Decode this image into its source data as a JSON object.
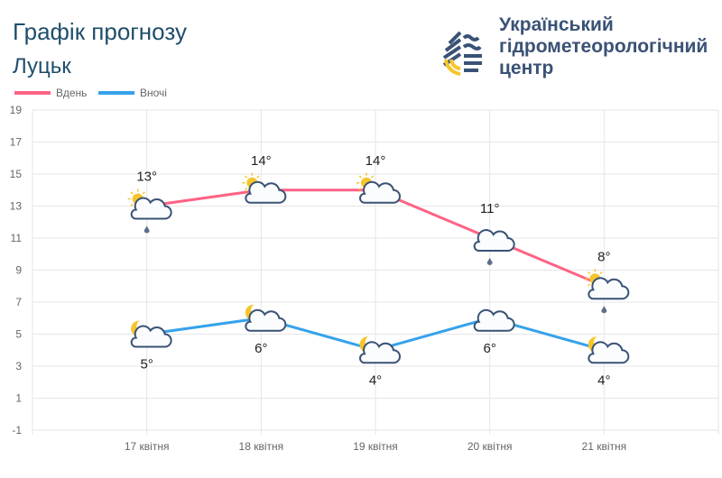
{
  "header": {
    "title": "Графік прогнозу",
    "city": "Луцьк"
  },
  "logo": {
    "lines": [
      "Український",
      "гідрометеорологічний",
      "центр"
    ]
  },
  "chart_data": {
    "type": "line",
    "categories": [
      "17 квітня",
      "18 квітня",
      "19 квітня",
      "20 квітня",
      "21 квітня"
    ],
    "ylim": [
      -1,
      19
    ],
    "yticks": [
      -1,
      1,
      3,
      5,
      7,
      9,
      11,
      13,
      15,
      17,
      19
    ],
    "grid": true,
    "legend_placement": "top-left",
    "series": [
      {
        "name": "Вдень",
        "color": "#ff6384",
        "values": [
          13,
          14,
          14,
          11,
          8
        ],
        "labels": [
          "13°",
          "14°",
          "14°",
          "11°",
          "8°"
        ],
        "icons": [
          "sun-cloud-rain",
          "sun-cloud",
          "sun-cloud",
          "cloud-rain",
          "sun-cloud-rain"
        ]
      },
      {
        "name": "Вночі",
        "color": "#36a2eb",
        "values": [
          5,
          6,
          4,
          6,
          4
        ],
        "labels": [
          "5°",
          "6°",
          "4°",
          "6°",
          "4°"
        ],
        "icons": [
          "moon-cloud",
          "moon-cloud",
          "moon-cloud",
          "cloud",
          "moon-cloud"
        ]
      }
    ]
  }
}
